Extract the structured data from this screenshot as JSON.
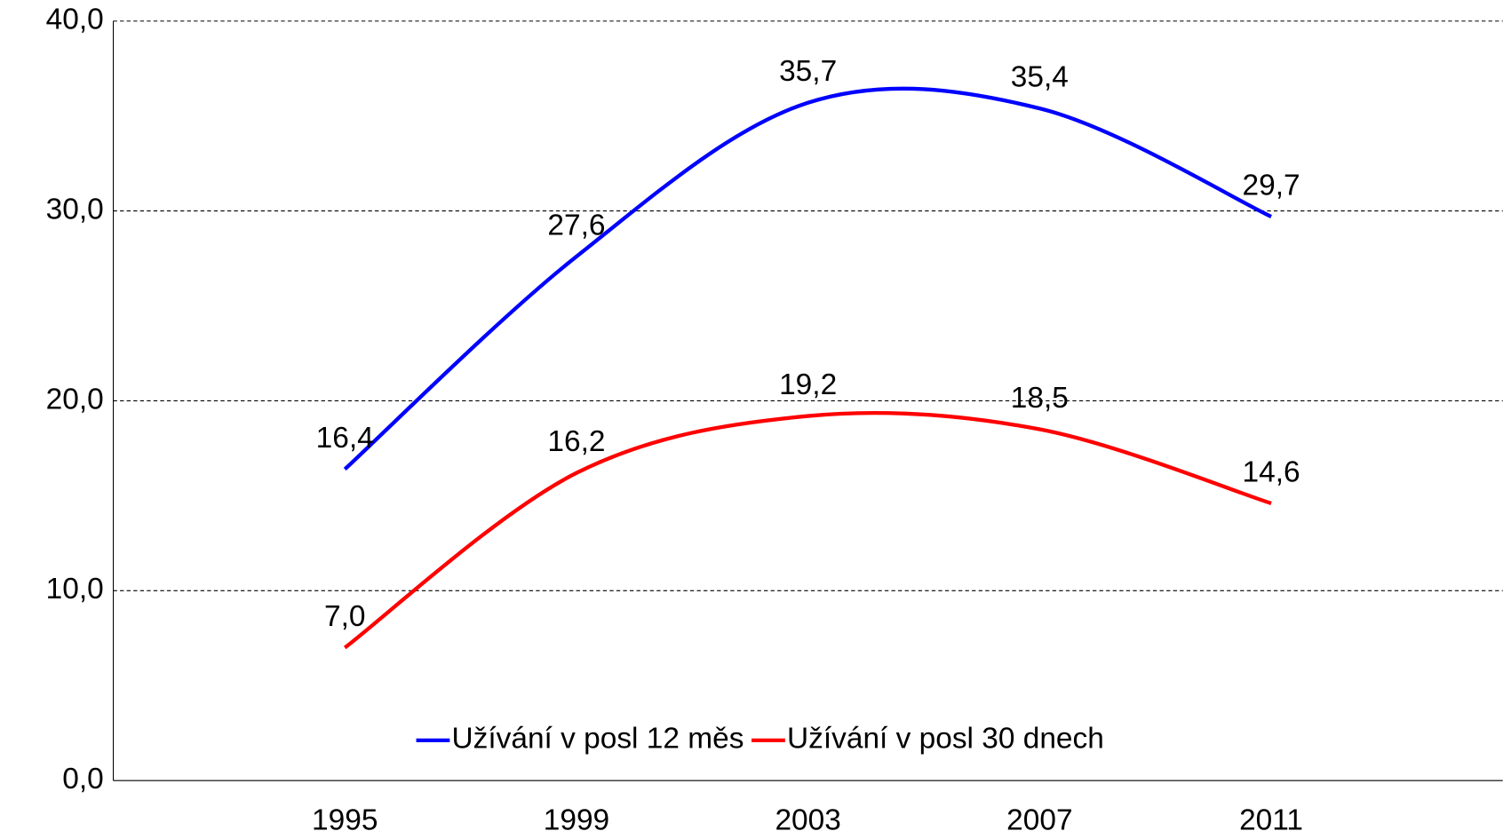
{
  "chart_data": {
    "type": "line",
    "x": [
      1995,
      1999,
      2003,
      2007,
      2011
    ],
    "xlim": [
      1991,
      2015
    ],
    "xticks": [
      1995,
      1999,
      2003,
      2007,
      2011
    ],
    "ylim": [
      0,
      40
    ],
    "yticks": [
      {
        "value": 0,
        "label": "0,0"
      },
      {
        "value": 10,
        "label": "10,0"
      },
      {
        "value": 20,
        "label": "20,0"
      },
      {
        "value": 30,
        "label": "30,0"
      },
      {
        "value": 40,
        "label": "40,0"
      }
    ],
    "grid": true,
    "legend": "bottom",
    "series": [
      {
        "name": "Užívání v posl 12 měs",
        "color": "#0000ff",
        "values": [
          16.4,
          27.6,
          35.7,
          35.4,
          29.7
        ],
        "value_labels": [
          "16,4",
          "27,6",
          "35,7",
          "35,4",
          "29,7"
        ]
      },
      {
        "name": "Užívání v posl 30 dnech",
        "color": "#ff0000",
        "values": [
          7.0,
          16.2,
          19.2,
          18.5,
          14.6
        ],
        "value_labels": [
          "7,0",
          "16,2",
          "19,2",
          "18,5",
          "14,6"
        ]
      }
    ]
  }
}
